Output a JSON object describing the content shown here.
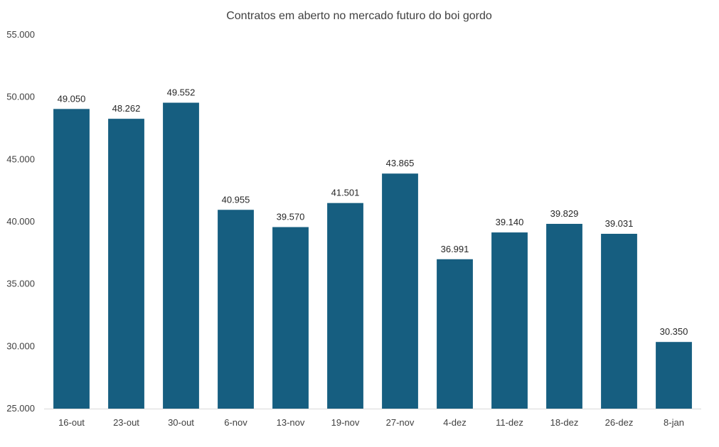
{
  "chart_data": {
    "type": "bar",
    "title": "Contratos em aberto no mercado futuro do boi gordo",
    "xlabel": "",
    "ylabel": "",
    "categories": [
      "16-out",
      "23-out",
      "30-out",
      "6-nov",
      "13-nov",
      "19-nov",
      "27-nov",
      "4-dez",
      "11-dez",
      "18-dez",
      "26-dez",
      "8-jan"
    ],
    "values": [
      49050,
      48262,
      49552,
      40955,
      39570,
      41501,
      43865,
      36991,
      39140,
      39829,
      39031,
      30350
    ],
    "value_labels": [
      "49.050",
      "48.262",
      "49.552",
      "40.955",
      "39.570",
      "41.501",
      "43.865",
      "36.991",
      "39.140",
      "39.829",
      "39.031",
      "30.350"
    ],
    "ylim": [
      25000,
      55000
    ],
    "y_ticks": [
      25000,
      30000,
      35000,
      40000,
      45000,
      50000,
      55000
    ],
    "y_tick_labels": [
      "25.000",
      "30.000",
      "35.000",
      "40.000",
      "45.000",
      "50.000",
      "55.000"
    ],
    "grid": false,
    "legend": "none",
    "bar_color": "#165E80",
    "axis_color": "#D9D9D9"
  }
}
